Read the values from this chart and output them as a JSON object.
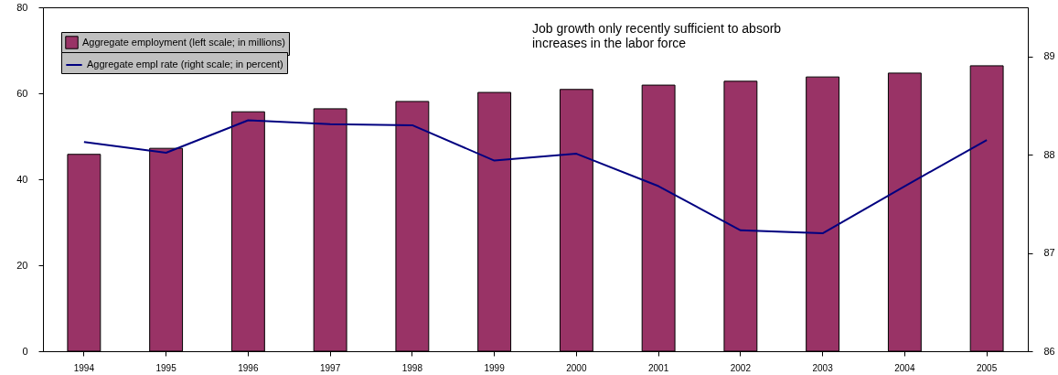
{
  "chart_data": {
    "type": "bar",
    "categories": [
      "1994",
      "1995",
      "1996",
      "1997",
      "1998",
      "1999",
      "2000",
      "2001",
      "2002",
      "2003",
      "2004",
      "2005"
    ],
    "series": [
      {
        "name": "Aggregate employment (left scale; in millions)",
        "color": "#993366",
        "values": [
          45.8,
          47.2,
          55.7,
          56.4,
          58.1,
          60.2,
          60.9,
          61.9,
          62.8,
          63.8,
          64.7,
          66.4
        ]
      },
      {
        "name": "Aggregate empl rate (right scale; in percent)",
        "type": "line",
        "axis": "y2",
        "color": "#000080",
        "values": [
          88.13,
          88.02,
          88.35,
          88.31,
          88.3,
          87.94,
          88.01,
          87.68,
          87.23,
          87.2,
          87.68,
          88.15
        ]
      }
    ],
    "ylim": [
      0,
      80
    ],
    "yticks": [
      0,
      20,
      40,
      60,
      80
    ],
    "y2lim": [
      86,
      89.5
    ],
    "y2ticks": [
      86,
      87,
      88,
      89
    ],
    "annotations": [
      "Job growth only recently sufficient to absorb\nincreases in the labor force"
    ],
    "legend": "top left",
    "grid": false
  }
}
